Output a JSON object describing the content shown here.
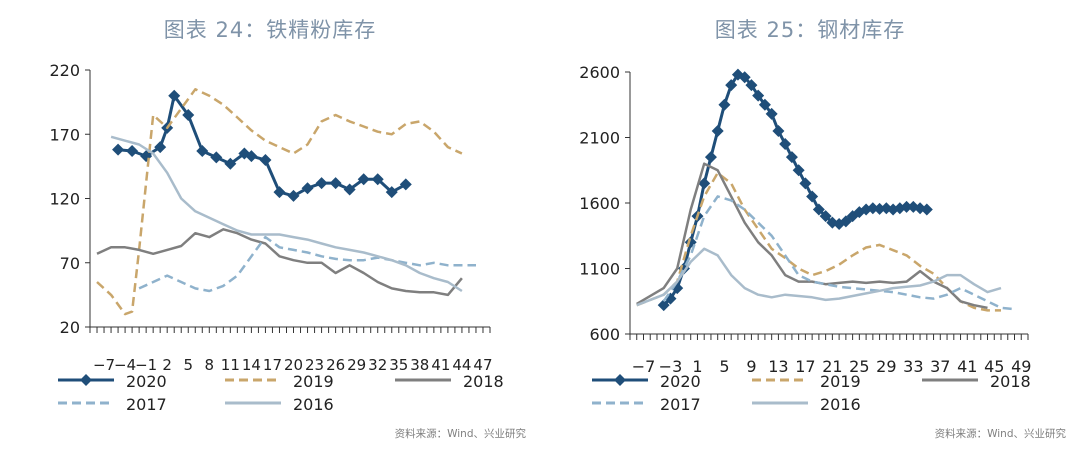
{
  "colors": {
    "s2020": "#1f4e79",
    "s2019": "#c9a66b",
    "s2018": "#7f7f7f",
    "s2017": "#8fb2cc",
    "s2016": "#a9bccb",
    "title": "#7f93a8",
    "axis": "#333333"
  },
  "source_text": "资料来源：Wind、兴业研究",
  "charts": [
    {
      "title": "图表 24：铁精粉库存",
      "chart_data": {
        "type": "line",
        "y_ticks": [
          20,
          70,
          120,
          170,
          220
        ],
        "ylim": [
          20,
          220
        ],
        "x_range": [
          -9,
          48
        ],
        "x_tick_labels": [
          "−7",
          "−4",
          "−1",
          "2",
          "5",
          "8",
          "11",
          "14",
          "17",
          "20",
          "23",
          "26",
          "29",
          "32",
          "35",
          "38",
          "41",
          "44",
          "47"
        ],
        "legend": [
          "2020",
          "2019",
          "2018",
          "2017",
          "2016"
        ],
        "series": [
          {
            "name": "2020",
            "key": "s2020",
            "style": "marker",
            "x": [
              -5,
              -3,
              -1,
              1,
              2,
              3,
              5,
              7,
              9,
              11,
              13,
              14,
              16,
              18,
              20,
              22,
              24,
              26,
              28,
              30,
              32,
              34,
              36
            ],
            "y": [
              158,
              157,
              153,
              160,
              175,
              200,
              185,
              157,
              152,
              147,
              155,
              153,
              150,
              125,
              122,
              128,
              132,
              132,
              127,
              135,
              135,
              125,
              131
            ]
          },
          {
            "name": "2019",
            "key": "s2019",
            "style": "dash",
            "x": [
              -8,
              -6,
              -4,
              -3,
              -2,
              0,
              2,
              4,
              6,
              8,
              10,
              12,
              14,
              16,
              18,
              20,
              22,
              24,
              26,
              28,
              30,
              32,
              34,
              36,
              38,
              40,
              42,
              44
            ],
            "y": [
              55,
              45,
              30,
              32,
              80,
              185,
              175,
              190,
              205,
              200,
              193,
              183,
              173,
              165,
              160,
              155,
              162,
              180,
              185,
              180,
              176,
              172,
              170,
              178,
              180,
              172,
              160,
              155
            ]
          },
          {
            "name": "2018",
            "key": "s2018",
            "style": "solid",
            "x": [
              -8,
              -6,
              -4,
              -2,
              0,
              2,
              4,
              6,
              8,
              10,
              12,
              14,
              16,
              18,
              20,
              22,
              24,
              26,
              28,
              30,
              32,
              34,
              36,
              38,
              40,
              42,
              44
            ],
            "y": [
              77,
              82,
              82,
              80,
              77,
              80,
              83,
              93,
              90,
              96,
              93,
              88,
              85,
              75,
              72,
              70,
              70,
              62,
              68,
              62,
              55,
              50,
              48,
              47,
              47,
              45,
              58
            ]
          },
          {
            "name": "2017",
            "key": "s2017",
            "style": "dash",
            "x": [
              -2,
              0,
              2,
              4,
              6,
              8,
              10,
              12,
              14,
              16,
              18,
              20,
              22,
              24,
              26,
              28,
              30,
              32,
              34,
              36,
              38,
              40,
              42,
              44,
              46
            ],
            "y": [
              50,
              55,
              60,
              55,
              50,
              48,
              52,
              60,
              75,
              90,
              82,
              80,
              78,
              75,
              73,
              72,
              72,
              74,
              72,
              70,
              68,
              70,
              68,
              68,
              68
            ]
          },
          {
            "name": "2016",
            "key": "s2016",
            "style": "solid",
            "x": [
              -6,
              -4,
              -2,
              0,
              2,
              4,
              6,
              8,
              10,
              12,
              14,
              16,
              18,
              20,
              22,
              24,
              26,
              28,
              30,
              32,
              34,
              36,
              38,
              40,
              42,
              44
            ],
            "y": [
              168,
              165,
              162,
              155,
              140,
              120,
              110,
              105,
              100,
              95,
              92,
              92,
              92,
              90,
              88,
              85,
              82,
              80,
              78,
              75,
              72,
              68,
              62,
              58,
              55,
              48
            ]
          }
        ]
      }
    },
    {
      "title": "图表 25：钢材库存",
      "chart_data": {
        "type": "line",
        "y_ticks": [
          600,
          1100,
          1600,
          2100,
          2600
        ],
        "ylim": [
          600,
          2600
        ],
        "x_range": [
          -9,
          50
        ],
        "x_tick_labels": [
          "−7",
          "−3",
          "1",
          "5",
          "9",
          "13",
          "17",
          "21",
          "25",
          "29",
          "33",
          "37",
          "41",
          "45",
          "49"
        ],
        "legend": [
          "2020",
          "2019",
          "2018",
          "2017",
          "2016"
        ],
        "series": [
          {
            "name": "2020",
            "key": "s2020",
            "style": "marker",
            "x": [
              -4,
              -3,
              -2,
              -1,
              0,
              1,
              2,
              3,
              4,
              5,
              6,
              7,
              8,
              9,
              10,
              11,
              12,
              13,
              14,
              15,
              16,
              17,
              18,
              19,
              20,
              21,
              22,
              23,
              24,
              25,
              26,
              27,
              28,
              29,
              30,
              31,
              32,
              33,
              34,
              35
            ],
            "y": [
              820,
              870,
              950,
              1100,
              1300,
              1500,
              1750,
              1950,
              2150,
              2350,
              2500,
              2580,
              2560,
              2500,
              2420,
              2350,
              2280,
              2150,
              2050,
              1950,
              1850,
              1750,
              1650,
              1550,
              1500,
              1450,
              1440,
              1460,
              1500,
              1530,
              1550,
              1560,
              1555,
              1560,
              1550,
              1560,
              1570,
              1570,
              1560,
              1550
            ]
          },
          {
            "name": "2019",
            "key": "s2019",
            "style": "dash",
            "x": [
              -8,
              -4,
              -2,
              0,
              2,
              4,
              6,
              8,
              10,
              12,
              14,
              16,
              18,
              20,
              22,
              24,
              26,
              28,
              30,
              32,
              34,
              36,
              38,
              40,
              42,
              44,
              46
            ],
            "y": [
              820,
              900,
              1000,
              1350,
              1650,
              1830,
              1750,
              1550,
              1400,
              1250,
              1180,
              1100,
              1050,
              1080,
              1130,
              1200,
              1260,
              1280,
              1240,
              1200,
              1120,
              1060,
              950,
              850,
              800,
              780,
              780
            ]
          },
          {
            "name": "2018",
            "key": "s2018",
            "style": "solid",
            "x": [
              -8,
              -4,
              -2,
              0,
              2,
              4,
              6,
              8,
              10,
              12,
              14,
              16,
              18,
              20,
              22,
              24,
              26,
              28,
              30,
              32,
              34,
              36,
              38,
              40,
              42,
              44
            ],
            "y": [
              830,
              950,
              1100,
              1550,
              1900,
              1850,
              1650,
              1450,
              1300,
              1200,
              1050,
              1000,
              1000,
              980,
              990,
              1000,
              990,
              1000,
              990,
              1000,
              1080,
              1000,
              950,
              850,
              820,
              800
            ]
          },
          {
            "name": "2017",
            "key": "s2017",
            "style": "dash",
            "x": [
              -4,
              -2,
              0,
              2,
              4,
              6,
              8,
              10,
              12,
              14,
              16,
              18,
              20,
              22,
              24,
              26,
              28,
              30,
              32,
              34,
              36,
              38,
              40,
              42,
              44,
              46,
              48
            ],
            "y": [
              850,
              1000,
              1200,
              1500,
              1650,
              1620,
              1550,
              1450,
              1350,
              1200,
              1050,
              1000,
              980,
              960,
              950,
              940,
              930,
              920,
              900,
              880,
              870,
              900,
              950,
              900,
              850,
              800,
              790
            ]
          },
          {
            "name": "2016",
            "key": "s2016",
            "style": "solid",
            "x": [
              -8,
              -4,
              -2,
              0,
              2,
              4,
              6,
              8,
              10,
              12,
              14,
              16,
              18,
              20,
              22,
              24,
              26,
              28,
              30,
              32,
              34,
              36,
              38,
              40,
              42,
              44,
              46
            ],
            "y": [
              820,
              900,
              1000,
              1150,
              1250,
              1200,
              1050,
              950,
              900,
              880,
              900,
              890,
              880,
              860,
              870,
              890,
              910,
              930,
              950,
              960,
              970,
              1000,
              1050,
              1050,
              980,
              920,
              950
            ]
          }
        ]
      }
    }
  ]
}
